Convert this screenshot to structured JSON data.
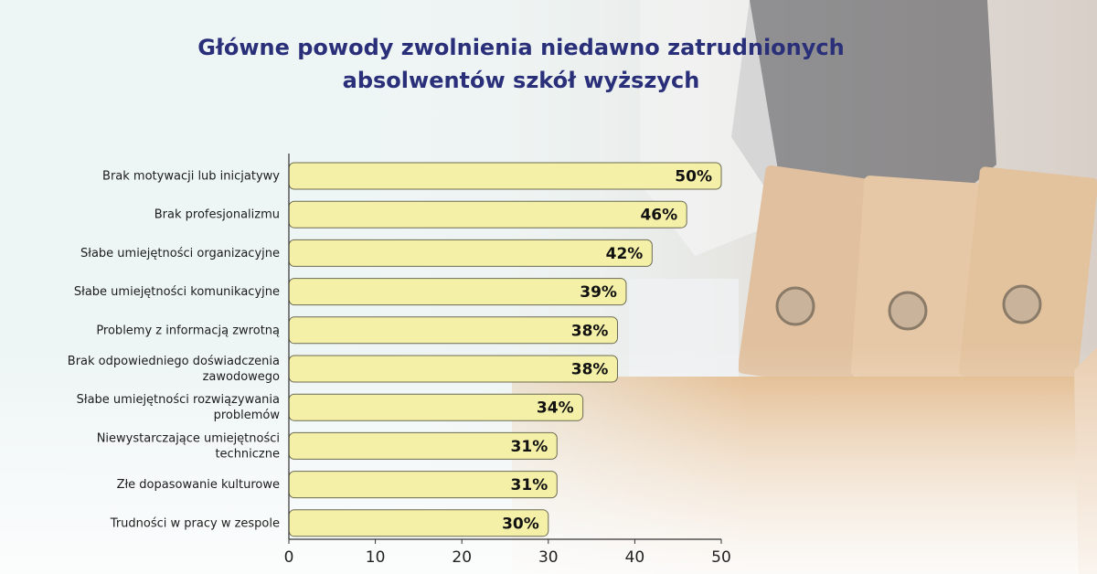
{
  "chart_data": {
    "type": "bar",
    "orientation": "horizontal",
    "title_line1": "Główne powody zwolnienia niedawno zatrudnionych",
    "title_line2": "absolwentów szkół wyższych",
    "categories": [
      [
        "Brak motywacji lub inicjatywy"
      ],
      [
        "Brak profesjonalizmu"
      ],
      [
        "Słabe umiejętności organizacyjne"
      ],
      [
        "Słabe umiejętności komunikacyjne"
      ],
      [
        "Problemy z informacją zwrotną"
      ],
      [
        "Brak odpowiedniego doświadczenia",
        "zawodowego"
      ],
      [
        "Słabe umiejętności rozwiązywania",
        "problemów"
      ],
      [
        "Niewystarczające umiejętności",
        "techniczne"
      ],
      [
        "Złe dopasowanie kulturowe"
      ],
      [
        "Trudności w pracy w zespole"
      ]
    ],
    "values": [
      50,
      46,
      42,
      39,
      38,
      38,
      34,
      31,
      31,
      30
    ],
    "value_labels": [
      "50%",
      "46%",
      "42%",
      "39%",
      "38%",
      "38%",
      "34%",
      "31%",
      "31%",
      "30%"
    ],
    "xlim": [
      0,
      50
    ],
    "xticks": [
      "0",
      "10",
      "20",
      "30",
      "40",
      "50"
    ],
    "grid": false,
    "bar_color": "#f5f0a8",
    "bar_stroke": "#6b6b52",
    "title_color": "#2a2f7a"
  }
}
